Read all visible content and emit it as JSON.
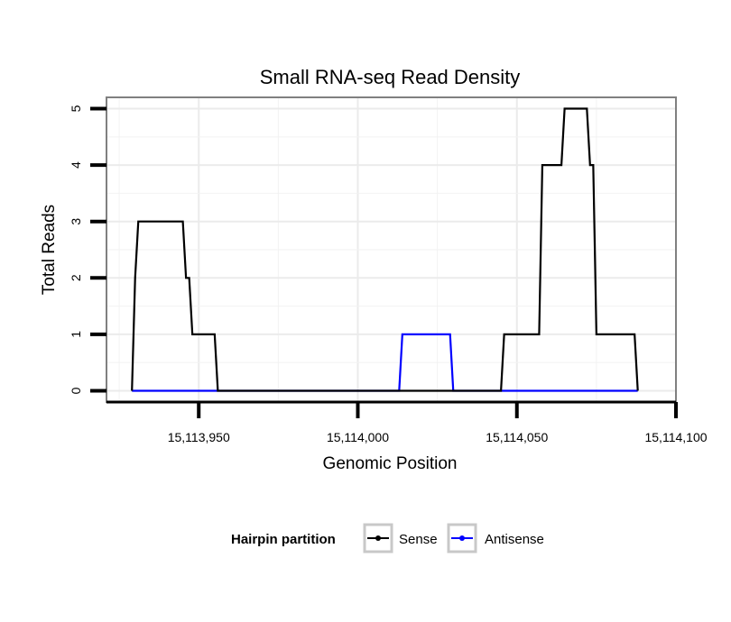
{
  "chart_data": {
    "type": "line",
    "title": "Small RNA-seq Read Density",
    "xlabel": "Genomic Position",
    "ylabel": "Total Reads",
    "xlim": [
      15113921,
      15114100
    ],
    "ylim": [
      -0.2,
      5.2
    ],
    "x_ticks": [
      15113950,
      15114000,
      15114050,
      15114100
    ],
    "x_tick_labels": [
      "15,113,950",
      "15,114,000",
      "15,114,050",
      "15,114,100"
    ],
    "y_ticks": [
      0,
      1,
      2,
      3,
      4,
      5
    ],
    "y_tick_labels": [
      "0",
      "1",
      "2",
      "3",
      "4",
      "5"
    ],
    "grid": true,
    "legend": {
      "title": "Hairpin partition",
      "position": "bottom",
      "entries": [
        "Sense",
        "Antisense"
      ]
    },
    "series": [
      {
        "name": "Sense",
        "color": "#000000",
        "points": [
          [
            15113929,
            0
          ],
          [
            15113930,
            2
          ],
          [
            15113931,
            3
          ],
          [
            15113945,
            3
          ],
          [
            15113946,
            2
          ],
          [
            15113947,
            2
          ],
          [
            15113948,
            1
          ],
          [
            15113955,
            1
          ],
          [
            15113956,
            0
          ],
          [
            15114045,
            0
          ],
          [
            15114046,
            1
          ],
          [
            15114057,
            1
          ],
          [
            15114058,
            4
          ],
          [
            15114064,
            4
          ],
          [
            15114065,
            5
          ],
          [
            15114072,
            5
          ],
          [
            15114073,
            4
          ],
          [
            15114074,
            4
          ],
          [
            15114075,
            1
          ],
          [
            15114087,
            1
          ],
          [
            15114088,
            0
          ]
        ]
      },
      {
        "name": "Antisense",
        "color": "#0000ff",
        "points": [
          [
            15113929,
            0
          ],
          [
            15114013,
            0
          ],
          [
            15114014,
            1
          ],
          [
            15114029,
            1
          ],
          [
            15114030,
            0
          ],
          [
            15114088,
            0
          ]
        ]
      }
    ]
  }
}
